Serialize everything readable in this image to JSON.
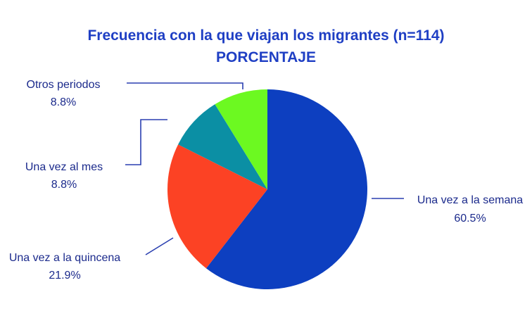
{
  "chart_data": {
    "type": "pie",
    "title": "Frecuencia con la que viajan los migrantes (n=114)",
    "subtitle": "PORCENTAJE",
    "slices": [
      {
        "label": "Una vez a la semana",
        "value": 60.5,
        "display": "60.5%",
        "color": "#0d3fc0"
      },
      {
        "label": "Una vez a la quincena",
        "value": 21.9,
        "display": "21.9%",
        "color": "#fc4224"
      },
      {
        "label": "Una vez al mes",
        "value": 8.8,
        "display": "8.8%",
        "color": "#0b8fa4"
      },
      {
        "label": "Otros periodos",
        "value": 8.8,
        "display": "8.8%",
        "color": "#6cf921"
      }
    ],
    "start_direction": "12 o'clock",
    "direction": "clockwise",
    "legend": "none"
  }
}
